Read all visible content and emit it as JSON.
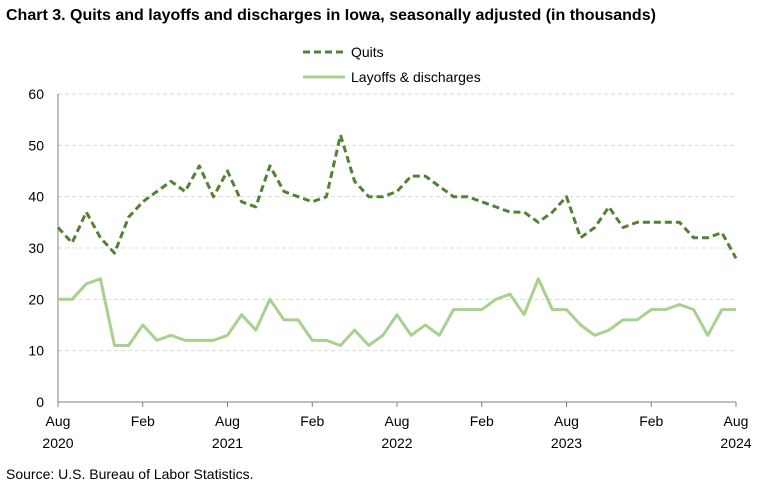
{
  "title": "Chart 3. Quits and layoffs and discharges in Iowa, seasonally adjusted (in thousands)",
  "source": "Source: U.S. Bureau of Labor Statistics.",
  "colors": {
    "quits": "#548235",
    "layoffs": "#A9D18E",
    "grid": "#D9D9D9",
    "axis": "#808080"
  },
  "chart_data": {
    "type": "line",
    "title": "Chart 3. Quits and layoffs and discharges in Iowa, seasonally adjusted (in thousands)",
    "x": [
      "2020-08",
      "2020-09",
      "2020-10",
      "2020-11",
      "2020-12",
      "2021-01",
      "2021-02",
      "2021-03",
      "2021-04",
      "2021-05",
      "2021-06",
      "2021-07",
      "2021-08",
      "2021-09",
      "2021-10",
      "2021-11",
      "2021-12",
      "2022-01",
      "2022-02",
      "2022-03",
      "2022-04",
      "2022-05",
      "2022-06",
      "2022-07",
      "2022-08",
      "2022-09",
      "2022-10",
      "2022-11",
      "2022-12",
      "2023-01",
      "2023-02",
      "2023-03",
      "2023-04",
      "2023-05",
      "2023-06",
      "2023-07",
      "2023-08",
      "2023-09",
      "2023-10",
      "2023-11",
      "2023-12",
      "2024-01",
      "2024-02",
      "2024-03",
      "2024-04",
      "2024-05",
      "2024-06",
      "2024-07",
      "2024-08"
    ],
    "series": [
      {
        "name": "Quits",
        "style": "dashed",
        "values": [
          34,
          31,
          37,
          32,
          29,
          36,
          39,
          41,
          43,
          41,
          46,
          40,
          45,
          39,
          38,
          46,
          41,
          40,
          39,
          40,
          52,
          43,
          40,
          40,
          41,
          44,
          44,
          42,
          40,
          40,
          39,
          38,
          37,
          37,
          35,
          37,
          40,
          32,
          34,
          38,
          34,
          35,
          35,
          35,
          35,
          32,
          32,
          33,
          28
        ]
      },
      {
        "name": "Layoffs & discharges",
        "style": "solid",
        "values": [
          20,
          20,
          23,
          24,
          11,
          11,
          15,
          12,
          13,
          12,
          12,
          12,
          13,
          17,
          14,
          20,
          16,
          16,
          12,
          12,
          11,
          14,
          11,
          13,
          17,
          13,
          15,
          13,
          18,
          18,
          18,
          20,
          21,
          17,
          24,
          18,
          18,
          15,
          13,
          14,
          16,
          16,
          18,
          18,
          19,
          18,
          13,
          18,
          18
        ]
      }
    ],
    "x_ticks": [
      {
        "month": "Aug",
        "year": "2020"
      },
      {
        "month": "Feb",
        "year": ""
      },
      {
        "month": "Aug",
        "year": "2021"
      },
      {
        "month": "Feb",
        "year": ""
      },
      {
        "month": "Aug",
        "year": "2022"
      },
      {
        "month": "Feb",
        "year": ""
      },
      {
        "month": "Aug",
        "year": "2023"
      },
      {
        "month": "Feb",
        "year": ""
      },
      {
        "month": "Aug",
        "year": "2024"
      }
    ],
    "y_ticks": [
      0,
      10,
      20,
      30,
      40,
      50,
      60
    ],
    "ylim": [
      0,
      60
    ],
    "grid": true,
    "legend": "top-center"
  }
}
